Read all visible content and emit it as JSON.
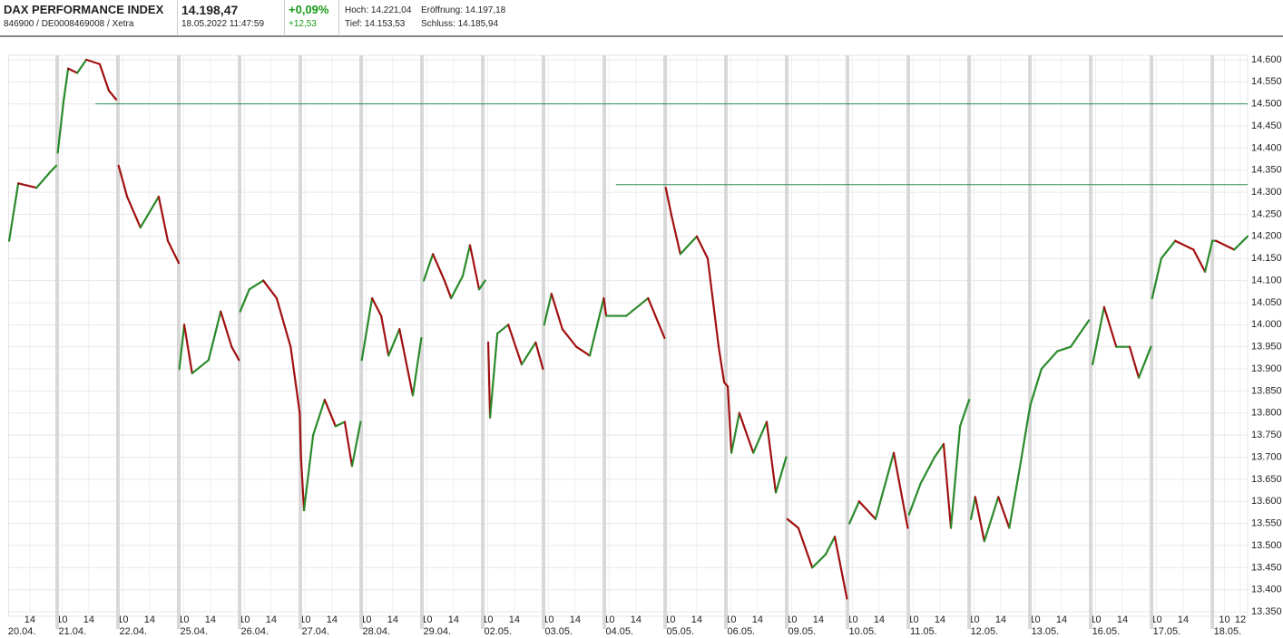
{
  "header": {
    "name": "DAX PERFORMANCE INDEX",
    "ids": "846900 / DE0008469008 / Xetra",
    "price": "14.198,47",
    "timestamp": "18.05.2022 11:47:59",
    "change_pct": "+0,09%",
    "change_abs": "+12,53",
    "high": "Hoch: 14.221,04",
    "open": "Eröffnung: 14.197,18",
    "low": "Tief: 14.153,53",
    "close": "Schluss: 14.185,94"
  },
  "chart_data": {
    "type": "line",
    "rise_color": "#2a8a2a",
    "fall_color": "#a01010",
    "xlim": [
      0.2,
      20.58
    ],
    "ylim": [
      13340,
      14610
    ],
    "yticks": [
      {
        "value": 13350,
        "label": "13.350"
      },
      {
        "value": 13400,
        "label": "13.400"
      },
      {
        "value": 13450,
        "label": "13.450"
      },
      {
        "value": 13500,
        "label": "13.500"
      },
      {
        "value": 13550,
        "label": "13.550"
      },
      {
        "value": 13600,
        "label": "13.600"
      },
      {
        "value": 13650,
        "label": "13.650"
      },
      {
        "value": 13700,
        "label": "13.700"
      },
      {
        "value": 13750,
        "label": "13.750"
      },
      {
        "value": 13800,
        "label": "13.800"
      },
      {
        "value": 13850,
        "label": "13.850"
      },
      {
        "value": 13900,
        "label": "13.900"
      },
      {
        "value": 13950,
        "label": "13.950"
      },
      {
        "value": 14000,
        "label": "14.000"
      },
      {
        "value": 14050,
        "label": "14.050"
      },
      {
        "value": 14100,
        "label": "14.100"
      },
      {
        "value": 14150,
        "label": "14.150"
      },
      {
        "value": 14200,
        "label": "14.200"
      },
      {
        "value": 14250,
        "label": "14.250"
      },
      {
        "value": 14300,
        "label": "14.300"
      },
      {
        "value": 14350,
        "label": "14.350"
      },
      {
        "value": 14400,
        "label": "14.400"
      },
      {
        "value": 14450,
        "label": "14.450"
      },
      {
        "value": 14500,
        "label": "14.500"
      },
      {
        "value": 14550,
        "label": "14.550"
      },
      {
        "value": 14600,
        "label": "14.600"
      }
    ],
    "xticks": [
      {
        "value": 0.55,
        "label": "14"
      },
      {
        "value": 1.08,
        "label": "10"
      },
      {
        "value": 1.52,
        "label": "14"
      },
      {
        "value": 2.08,
        "label": "10"
      },
      {
        "value": 2.52,
        "label": "14"
      },
      {
        "value": 3.08,
        "label": "10"
      },
      {
        "value": 3.52,
        "label": "14"
      },
      {
        "value": 4.08,
        "label": "10"
      },
      {
        "value": 4.52,
        "label": "14"
      },
      {
        "value": 5.08,
        "label": "10"
      },
      {
        "value": 5.52,
        "label": "14"
      },
      {
        "value": 6.08,
        "label": "10"
      },
      {
        "value": 6.52,
        "label": "14"
      },
      {
        "value": 7.08,
        "label": "10"
      },
      {
        "value": 7.52,
        "label": "14"
      },
      {
        "value": 8.08,
        "label": "10"
      },
      {
        "value": 8.52,
        "label": "14"
      },
      {
        "value": 9.08,
        "label": "10"
      },
      {
        "value": 9.52,
        "label": "14"
      },
      {
        "value": 10.08,
        "label": "10"
      },
      {
        "value": 10.52,
        "label": "14"
      },
      {
        "value": 11.08,
        "label": "10"
      },
      {
        "value": 11.52,
        "label": "14"
      },
      {
        "value": 12.08,
        "label": "10"
      },
      {
        "value": 12.52,
        "label": "14"
      },
      {
        "value": 13.08,
        "label": "10"
      },
      {
        "value": 13.52,
        "label": "14"
      },
      {
        "value": 14.08,
        "label": "10"
      },
      {
        "value": 14.52,
        "label": "14"
      },
      {
        "value": 15.08,
        "label": "10"
      },
      {
        "value": 15.52,
        "label": "14"
      },
      {
        "value": 16.08,
        "label": "10"
      },
      {
        "value": 16.52,
        "label": "14"
      },
      {
        "value": 17.08,
        "label": "10"
      },
      {
        "value": 17.52,
        "label": "14"
      },
      {
        "value": 18.08,
        "label": "10"
      },
      {
        "value": 18.52,
        "label": "14"
      },
      {
        "value": 19.08,
        "label": "10"
      },
      {
        "value": 19.52,
        "label": "14"
      },
      {
        "value": 20.2,
        "label": "10"
      },
      {
        "value": 20.46,
        "label": "12"
      }
    ],
    "day_ticks": [
      {
        "value": 0.42,
        "label": "20.04."
      },
      {
        "value": 1.25,
        "label": "21.04."
      },
      {
        "value": 2.25,
        "label": "22.04."
      },
      {
        "value": 3.25,
        "label": "25.04."
      },
      {
        "value": 4.25,
        "label": "26.04."
      },
      {
        "value": 5.25,
        "label": "27.04."
      },
      {
        "value": 6.25,
        "label": "28.04."
      },
      {
        "value": 7.25,
        "label": "29.04."
      },
      {
        "value": 8.25,
        "label": "02.05."
      },
      {
        "value": 9.25,
        "label": "03.05."
      },
      {
        "value": 10.25,
        "label": "04.05."
      },
      {
        "value": 11.25,
        "label": "05.05."
      },
      {
        "value": 12.25,
        "label": "06.05."
      },
      {
        "value": 13.25,
        "label": "09.05."
      },
      {
        "value": 14.25,
        "label": "10.05."
      },
      {
        "value": 15.25,
        "label": "11.05."
      },
      {
        "value": 16.25,
        "label": "12.05."
      },
      {
        "value": 17.25,
        "label": "13.05."
      },
      {
        "value": 18.25,
        "label": "16.05."
      },
      {
        "value": 19.25,
        "label": "17.05."
      },
      {
        "value": 20.25,
        "label": "18.05."
      }
    ],
    "day_separators": [
      1,
      2,
      3,
      4,
      5,
      6,
      7,
      8,
      9,
      10,
      11,
      12,
      13,
      14,
      15,
      16,
      17,
      18,
      19,
      20
    ],
    "ref_lines": [
      {
        "value": 14500,
        "x_start": 1.63,
        "color": "#2e8b57"
      },
      {
        "value": 14317,
        "x_start": 10.19,
        "color": "#2e8b57"
      }
    ],
    "x": [
      0.21,
      0.36,
      0.66,
      0.88,
      0.985,
      1.0,
      1.01,
      1.1,
      1.18,
      1.33,
      1.48,
      1.7,
      1.85,
      1.97,
      2.0,
      2.01,
      2.15,
      2.37,
      2.67,
      2.82,
      3.0,
      3.005,
      3.01,
      3.09,
      3.22,
      3.49,
      3.69,
      3.87,
      3.99,
      4.0,
      4.01,
      4.16,
      4.39,
      4.61,
      4.84,
      4.99,
      5.01,
      5.06,
      5.21,
      5.4,
      5.58,
      5.73,
      5.85,
      5.99,
      6.0,
      6.01,
      6.18,
      6.33,
      6.45,
      6.63,
      6.85,
      6.99,
      7.0,
      7.03,
      7.18,
      7.37,
      7.48,
      7.67,
      7.79,
      7.94,
      8.04,
      8.06,
      8.09,
      8.12,
      8.24,
      8.42,
      8.64,
      8.87,
      8.99,
      9.0,
      9.01,
      9.13,
      9.31,
      9.54,
      9.76,
      9.99,
      10.03,
      10.36,
      10.72,
      10.99,
      11.0,
      11.01,
      11.1,
      11.25,
      11.52,
      11.7,
      11.88,
      11.97,
      12.03,
      12.09,
      12.22,
      12.45,
      12.67,
      12.82,
      12.99,
      13.0,
      13.01,
      13.19,
      13.42,
      13.64,
      13.79,
      13.99,
      14.0,
      14.03,
      14.19,
      14.46,
      14.76,
      14.99,
      15.0,
      15.01,
      15.2,
      15.43,
      15.58,
      15.7,
      15.85,
      16.0,
      16.01,
      16.03,
      16.1,
      16.25,
      16.48,
      16.66,
      16.85,
      16.97,
      17.01,
      17.19,
      17.45,
      17.67,
      17.82,
      17.97,
      18.0,
      18.03,
      18.22,
      18.42,
      18.64,
      18.79,
      18.99,
      19.0,
      19.01,
      19.16,
      19.39,
      19.69,
      19.88,
      20.0,
      20.06,
      20.36,
      20.58
    ],
    "values": [
      14190,
      14320,
      14310,
      14345,
      14360,
      null,
      14390,
      14500,
      14580,
      14570,
      14600,
      14590,
      14530,
      14510,
      null,
      14360,
      14290,
      14220,
      14290,
      14190,
      14140,
      null,
      13900,
      14000,
      13890,
      13920,
      14030,
      13950,
      13920,
      null,
      14030,
      14080,
      14100,
      14060,
      13950,
      13800,
      13700,
      13580,
      13750,
      13830,
      13770,
      13780,
      13680,
      13780,
      null,
      13920,
      14060,
      14020,
      13930,
      13990,
      13840,
      13970,
      null,
      14100,
      14160,
      14100,
      14060,
      14110,
      14180,
      14080,
      14100,
      null,
      13960,
      13790,
      13980,
      14000,
      13910,
      13960,
      13900,
      null,
      14000,
      14070,
      13990,
      13950,
      13930,
      14060,
      14020,
      14020,
      14060,
      13970,
      null,
      14310,
      14250,
      14160,
      14200,
      14150,
      13950,
      13870,
      13860,
      13710,
      13800,
      13710,
      13780,
      13620,
      13700,
      null,
      13560,
      13540,
      13450,
      13480,
      13520,
      13380,
      null,
      13550,
      13600,
      13560,
      13710,
      13540,
      null,
      13570,
      13640,
      13700,
      13730,
      13540,
      13770,
      13830,
      null,
      13560,
      13610,
      13510,
      13610,
      13540,
      13690,
      13790,
      13820,
      13900,
      13940,
      13950,
      13980,
      14010,
      null,
      13910,
      14040,
      13950,
      13950,
      13880,
      13950,
      null,
      14060,
      14150,
      14190,
      14170,
      14120,
      14190,
      14190,
      14170,
      14200
    ]
  }
}
